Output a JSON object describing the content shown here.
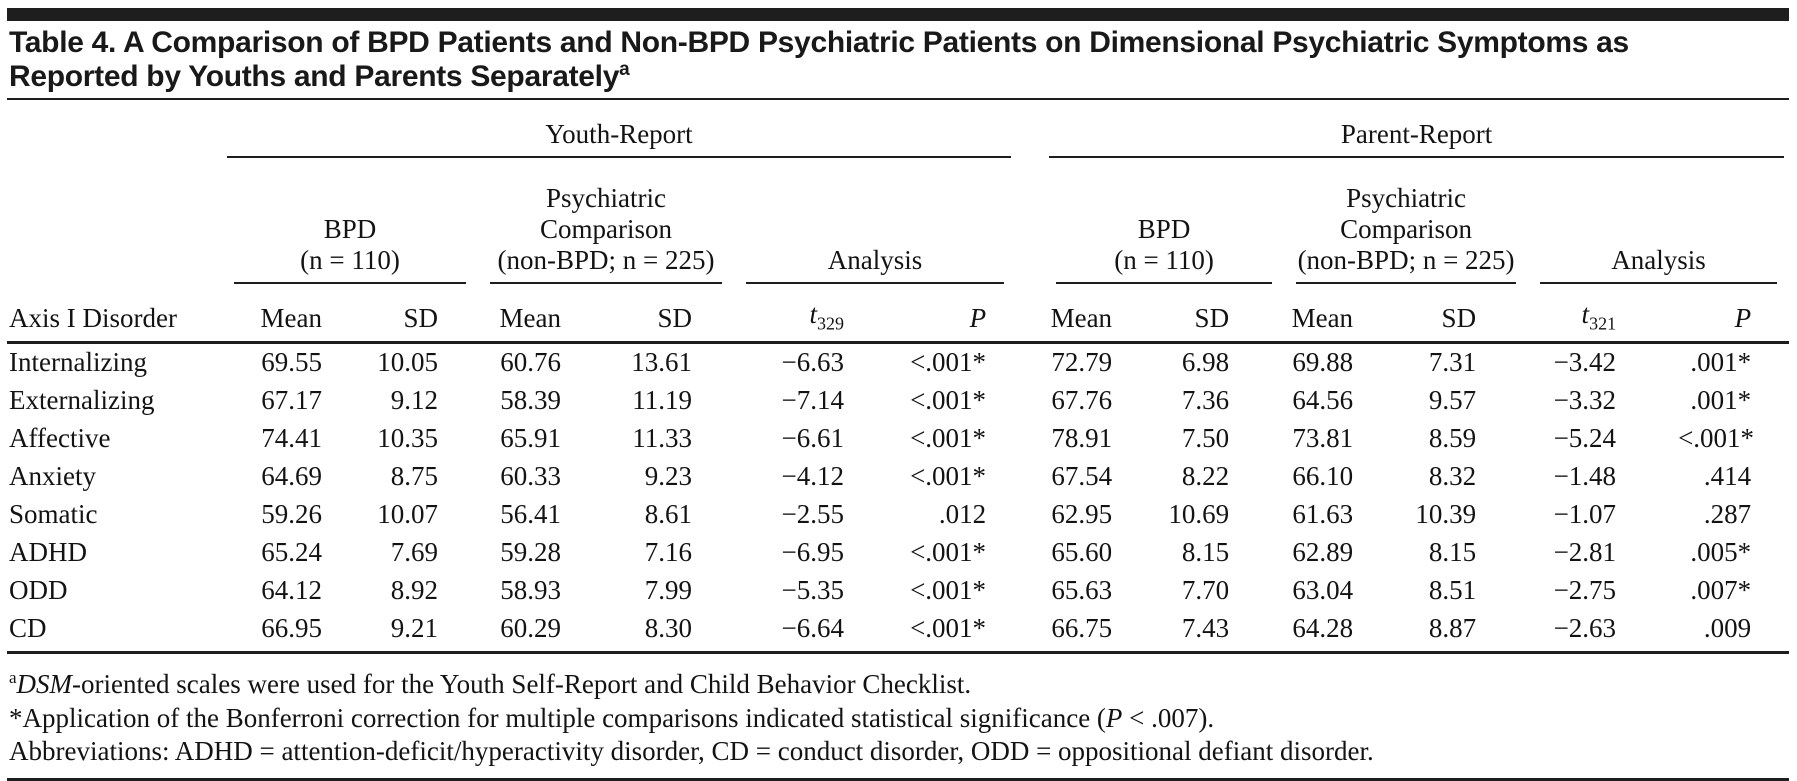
{
  "title": {
    "text": "Table 4. A Comparison of BPD Patients and Non-BPD Psychiatric Patients on Dimensional Psychiatric Symptoms as Reported by Youths and Parents Separately",
    "sup": "a"
  },
  "colors": {
    "ink": "#1e1e1e",
    "background": "#ffffff"
  },
  "table": {
    "group_headers": {
      "youth": "Youth-Report",
      "parent": "Parent-Report"
    },
    "subgroups": {
      "bpd_line1": "BPD",
      "bpd_line2": "(n = 110)",
      "comp_line1": "Psychiatric",
      "comp_line2": "Comparison",
      "comp_line3": "(non-BPD; n = 225)",
      "analysis": "Analysis"
    },
    "col_headers": {
      "axis": "Axis I Disorder",
      "mean": "Mean",
      "sd": "SD",
      "t_symbol": "t",
      "t_sub_youth": "329",
      "t_sub_parent": "321",
      "p": "P"
    },
    "rows": [
      {
        "disorder": "Internalizing",
        "c": [
          "69.55",
          "10.05",
          "60.76",
          "13.61",
          "−6.63",
          "<.001*",
          "72.79",
          "6.98",
          "69.88",
          "7.31",
          "−3.42",
          ".001*"
        ]
      },
      {
        "disorder": "Externalizing",
        "c": [
          "67.17",
          "9.12",
          "58.39",
          "11.19",
          "−7.14",
          "<.001*",
          "67.76",
          "7.36",
          "64.56",
          "9.57",
          "−3.32",
          ".001*"
        ]
      },
      {
        "disorder": "Affective",
        "c": [
          "74.41",
          "10.35",
          "65.91",
          "11.33",
          "−6.61",
          "<.001*",
          "78.91",
          "7.50",
          "73.81",
          "8.59",
          "−5.24",
          "<.001*"
        ]
      },
      {
        "disorder": "Anxiety",
        "c": [
          "64.69",
          "8.75",
          "60.33",
          "9.23",
          "−4.12",
          "<.001*",
          "67.54",
          "8.22",
          "66.10",
          "8.32",
          "−1.48",
          ".414"
        ]
      },
      {
        "disorder": "Somatic",
        "c": [
          "59.26",
          "10.07",
          "56.41",
          "8.61",
          "−2.55",
          ".012",
          "62.95",
          "10.69",
          "61.63",
          "10.39",
          "−1.07",
          ".287"
        ]
      },
      {
        "disorder": "ADHD",
        "c": [
          "65.24",
          "7.69",
          "59.28",
          "7.16",
          "−6.95",
          "<.001*",
          "65.60",
          "8.15",
          "62.89",
          "8.15",
          "−2.81",
          ".005*"
        ]
      },
      {
        "disorder": "ODD",
        "c": [
          "64.12",
          "8.92",
          "58.93",
          "7.99",
          "−5.35",
          "<.001*",
          "65.63",
          "7.70",
          "63.04",
          "8.51",
          "−2.75",
          ".007*"
        ]
      },
      {
        "disorder": "CD",
        "c": [
          "66.95",
          "9.21",
          "60.29",
          "8.30",
          "−6.64",
          "<.001*",
          "66.75",
          "7.43",
          "64.28",
          "8.87",
          "−2.63",
          ".009"
        ]
      }
    ]
  },
  "footnotes": {
    "a_sup": "a",
    "a_italic": "DSM",
    "a_rest": "-oriented scales were used for the Youth Self-Report and Child Behavior Checklist.",
    "star_pre": "*Application of the Bonferroni correction for multiple comparisons indicated statistical significance (",
    "star_p": "P",
    "star_post": " < .007).",
    "abbreviations": "Abbreviations: ADHD = attention-deficit/hyperactivity disorder, CD = conduct disorder, ODD = oppositional defiant disorder."
  }
}
